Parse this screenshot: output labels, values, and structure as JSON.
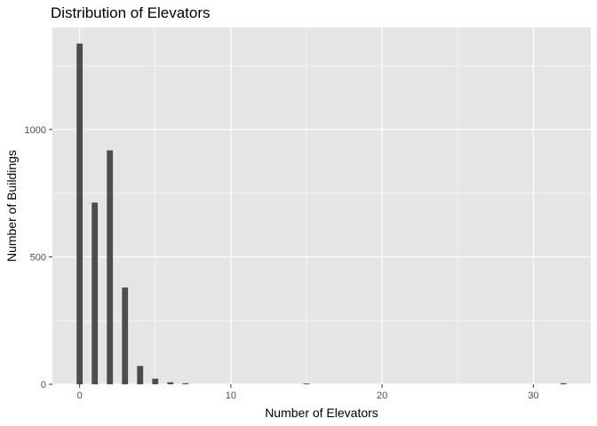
{
  "chart_data": {
    "type": "bar",
    "title": "Distribution of Elevators",
    "xlabel": "Number of Elevators",
    "ylabel": "Number of Buildings",
    "xlim": [
      -1.8,
      33.8
    ],
    "ylim": [
      0,
      1400
    ],
    "x_ticks": [
      0,
      10,
      20,
      30
    ],
    "x_minor_ticks": [
      5,
      15,
      25
    ],
    "y_ticks": [
      0,
      500,
      1000
    ],
    "y_minor_ticks": [
      250,
      750,
      1250
    ],
    "grid": true,
    "legend": "none",
    "bar_color": "#4d4d4d",
    "panel_color": "#e5e5e5",
    "grid_color": "#ffffff",
    "bar_width": 0.4,
    "x": [
      0,
      1,
      2,
      3,
      4,
      5,
      6,
      7,
      15,
      32
    ],
    "values": [
      1337,
      713,
      918,
      380,
      72,
      22,
      8,
      4,
      3,
      4
    ]
  }
}
